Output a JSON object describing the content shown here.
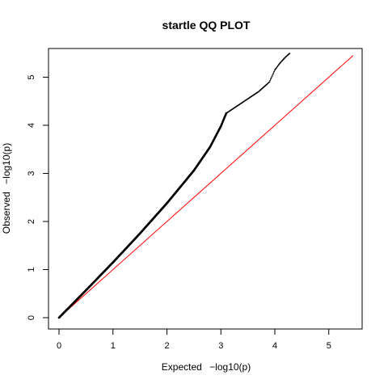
{
  "chart_data": {
    "type": "scatter",
    "title": "startle QQ PLOT",
    "xlabel": "Expected",
    "ylabel": "Observed",
    "xlabel_math": "−log10(p)",
    "ylabel_math": "−log10(p)",
    "xlim": [
      0,
      5.5
    ],
    "ylim": [
      0,
      5.5
    ],
    "x_ticks": [
      0,
      1,
      2,
      3,
      4,
      5
    ],
    "y_ticks": [
      0,
      1,
      2,
      3,
      4,
      5
    ],
    "grid": false,
    "reference_line": {
      "x": [
        0,
        5.45
      ],
      "y": [
        0,
        5.45
      ],
      "color": "#ff0000"
    },
    "observed_curve": {
      "color": "#000000",
      "x": [
        0,
        0.5,
        1.0,
        1.5,
        2.0,
        2.5,
        2.8,
        3.0,
        3.1,
        3.3,
        3.5,
        3.7,
        3.8,
        3.9,
        4.0,
        4.1,
        4.2,
        4.28
      ],
      "y": [
        0,
        0.57,
        1.15,
        1.75,
        2.38,
        3.06,
        3.55,
        3.98,
        4.25,
        4.4,
        4.55,
        4.7,
        4.8,
        4.9,
        5.15,
        5.3,
        5.42,
        5.5
      ]
    }
  }
}
